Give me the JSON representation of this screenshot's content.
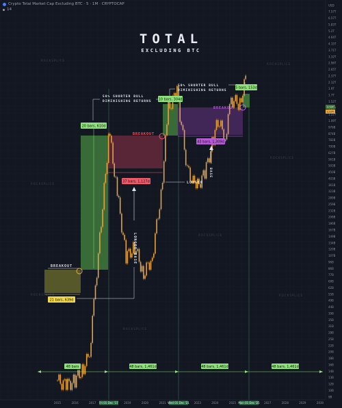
{
  "header": {
    "title": "Crypto Total Market Cap Excluding BTC · 5 · 1M · CRYPTOCAP",
    "sub": "14"
  },
  "headline": {
    "line1": "TOTAL",
    "line2": "EXCLUDING BTC"
  },
  "price_axis": {
    "labels": [
      "USD",
      "7.57T",
      "6.57T",
      "5.83T",
      "5.2T",
      "4.64T",
      "4.15T",
      "3.71T",
      "3.32T",
      "2.96T",
      "2.65T",
      "2.37T",
      "2.12T",
      "1.9T",
      "1.7T",
      "1.52T",
      "1.36T",
      "1.22T",
      "1.09T",
      "976B",
      "874B",
      "782B",
      "700B",
      "627B",
      "561B",
      "503B",
      "450B",
      "403B",
      "361B",
      "323B",
      "289B",
      "259B",
      "232B",
      "208B",
      "186B",
      "167B",
      "149B",
      "134B",
      "120B",
      "107B",
      "96B",
      "86B",
      "77B",
      "69B",
      "62B",
      "55B",
      "49B",
      "44B",
      "39B",
      "35B",
      "31B",
      "28B",
      "25B",
      "22B",
      "20B",
      "18B",
      "16B",
      "14B",
      "13B",
      "12B",
      "10B",
      "9B"
    ],
    "current_price": "1.17T",
    "current_badge": "3.53T"
  },
  "time_axis": {
    "ticks": [
      "2015",
      "2016",
      "2017",
      "2018",
      "2019",
      "2020",
      "2021",
      "2022",
      "2023",
      "2024",
      "2025",
      "2026",
      "2027",
      "2028",
      "2029",
      "2030"
    ],
    "highlights": [
      "Fri 01 Dec '17",
      "Wed 01 Dec '21",
      "Mon 01 Dec '25"
    ]
  },
  "watermarks": [
    "ROCKSPLICE",
    "ROCKSPLICE",
    "ROCKSPLICE",
    "ROCKSPLICE",
    "ROCKSPLICE",
    "ROCKSPLICE",
    "ROCKSPLICE",
    "ROCKSPLICE"
  ],
  "annotations": {
    "breakout1": "BREAKOUT",
    "breakout2": "BREAKOUT",
    "breakout3": "BREAKOUT",
    "shorter_bull_1_line1": "50% SHORTER BULL",
    "shorter_bull_1_line2": "DIMINISHING RETURNS",
    "shorter_bull_2_line1": "50% SHORTER BULL",
    "shorter_bull_2_line2": "DIMINISHING RETURNS",
    "longer_base": "LONGER BASE",
    "longer": "LONGER",
    "base": "BASE"
  },
  "range_labels": {
    "base1": "21 bars, 639d",
    "bull1": "20 bars, 610d",
    "base2": "37 bars, 1,127d",
    "bull2": "10 bars, 304d",
    "base3": "43 bars, 1,309d",
    "bull3": "5 bars, 153d",
    "cycle1": "48 bars",
    "cycle2": "48 bars, 1,461d",
    "cycle3": "48 bars, 1,461d",
    "cycle4": "48 bars, 1,461d"
  },
  "colors": {
    "background": "#131722",
    "bull_zone": "#3f7a3c",
    "base1_zone": "#6e6f2e",
    "base2_zone": "#6a2a3c",
    "base3_zone": "#4e2a66",
    "candle": "#e8a33c",
    "label_green": "#8ee27a",
    "label_red": "#f05a6a",
    "label_purple": "#b65ad8",
    "breakout_ring_1": "#f0b13a",
    "breakout_ring_2": "#f05a6a",
    "breakout_ring_3": "#c56af0"
  },
  "chart_data": {
    "type": "candlestick",
    "title": "TOTAL EXCLUDING BTC",
    "interval": "1M",
    "scale": "log",
    "series": [
      {
        "name": "TOTAL ex BTC",
        "x": [
          "2015-01",
          "2015-07",
          "2016-01",
          "2016-07",
          "2016-11",
          "2017-03",
          "2017-06",
          "2017-09",
          "2017-12",
          "2018-01",
          "2018-06",
          "2018-12",
          "2019-06",
          "2019-12",
          "2020-06",
          "2020-12",
          "2021-05",
          "2021-11",
          "2022-06",
          "2022-12",
          "2023-06",
          "2023-12",
          "2024-03",
          "2024-08",
          "2024-12",
          "2025-06",
          "2025-11"
        ],
        "values": [
          12,
          11,
          12,
          15,
          19,
          60,
          140,
          320,
          760,
          780,
          300,
          100,
          120,
          75,
          100,
          300,
          1300,
          1700,
          450,
          330,
          420,
          780,
          1050,
          790,
          1500,
          1400,
          2400
        ]
      }
    ],
    "zones": [
      {
        "name": "base",
        "start": "2015-03",
        "end": "2016-12",
        "bars": 21,
        "days": 639
      },
      {
        "name": "bull",
        "start": "2016-12",
        "end": "2018-08",
        "bars": 20,
        "days": 610
      },
      {
        "name": "base",
        "start": "2018-01",
        "end": "2021-02",
        "bars": 37,
        "days": 1127
      },
      {
        "name": "bull",
        "start": "2021-01",
        "end": "2021-11",
        "bars": 10,
        "days": 304
      },
      {
        "name": "base",
        "start": "2021-11",
        "end": "2025-06",
        "bars": 43,
        "days": 1309
      },
      {
        "name": "bull",
        "start": "2025-06",
        "end": "2025-11",
        "bars": 5,
        "days": 153
      }
    ],
    "cycles": [
      "48 bars",
      "48 bars, 1,461d",
      "48 bars, 1,461d",
      "48 bars, 1,461d"
    ]
  }
}
